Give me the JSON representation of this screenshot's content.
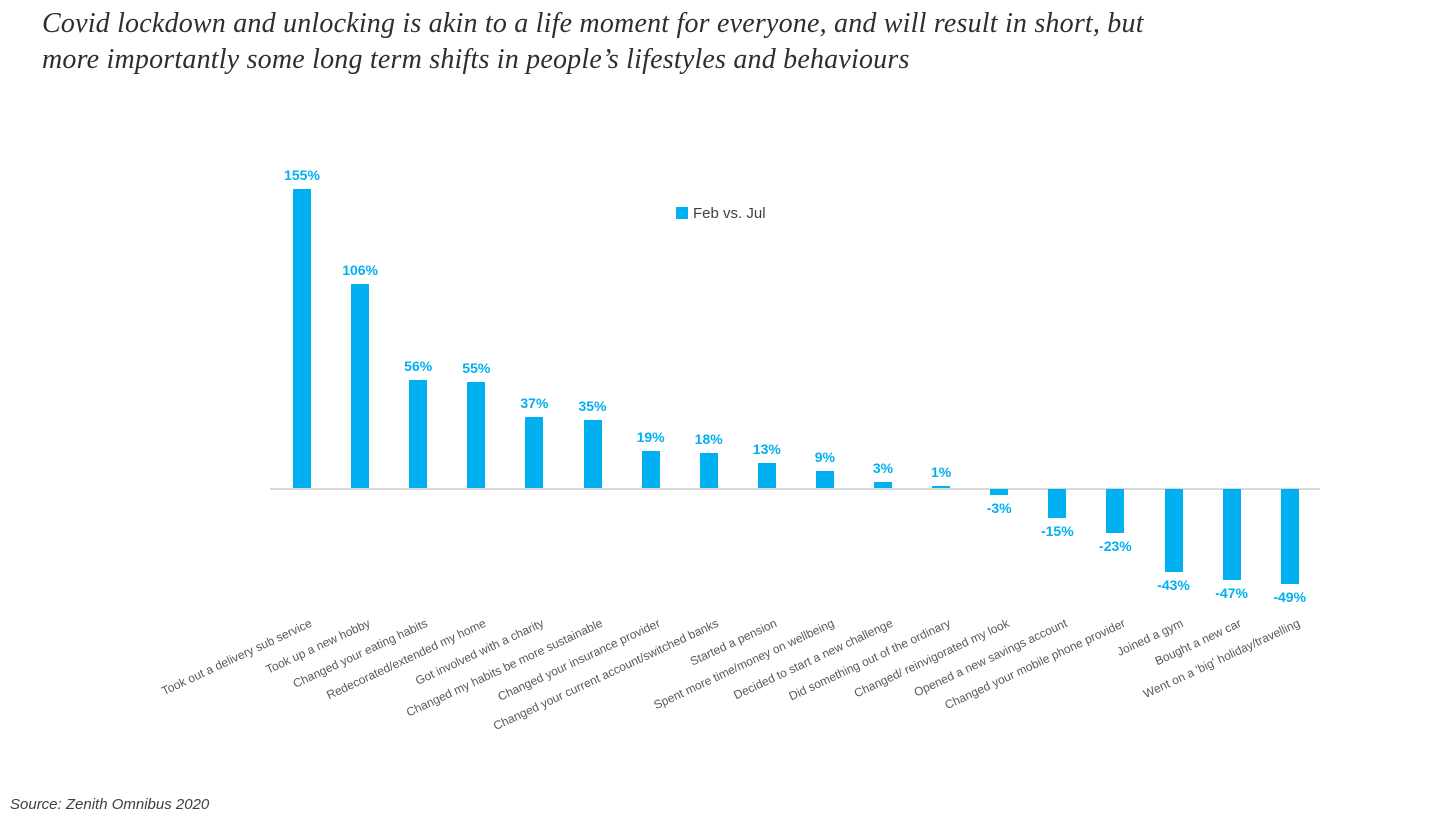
{
  "title": {
    "line1": "Covid lockdown and unlocking is akin to a life moment for everyone, and will result in short, but",
    "line2": "more importantly some long term shifts in people’s lifestyles and behaviours"
  },
  "legend": {
    "label": "Feb vs. Jul"
  },
  "source": {
    "text": "Source: Zenith Omnibus 2020"
  },
  "colors": {
    "bar": "#00B0F0",
    "value_label": "#00B0F0",
    "category_label": "#595959",
    "axis_line": "#D9D9D9",
    "title_text": "#2E2E2E",
    "legend_text": "#404040"
  },
  "chart_data": {
    "type": "bar",
    "title": "",
    "legend": [
      "Feb vs. Jul"
    ],
    "legend_position": "top-center",
    "grid": false,
    "y_axis_visible": false,
    "value_suffix": "%",
    "ylim": [
      -60,
      170
    ],
    "categories": [
      "Took out a delivery sub service",
      "Took up a new hobby",
      "Changed your eating habits",
      "Redecorated/extended my home",
      "Got involved with a charity",
      "Changed my habits be more sustainable",
      "Changed your insurance provider",
      "Changed your current account/switched banks",
      "Started a pension",
      "Spent more time/money on wellbeing",
      "Decided to start a new challenge",
      "Did something out of the ordinary",
      "Changed/ reinvigorated my look",
      "Opened a new savings account",
      "Changed your mobile phone provider",
      "Joined a gym",
      "Bought a new car",
      "Went on a 'big' holiday/travelling"
    ],
    "values": [
      155,
      106,
      56,
      55,
      37,
      35,
      19,
      18,
      13,
      9,
      3,
      1,
      -3,
      -15,
      -23,
      -43,
      -47,
      -49
    ]
  }
}
